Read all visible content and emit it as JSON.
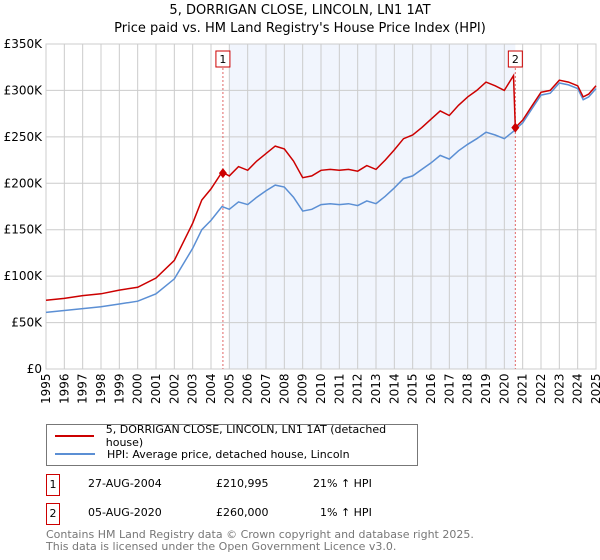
{
  "chart_data": {
    "type": "line",
    "title": "5, DORRIGAN CLOSE, LINCOLN, LN1 1AT",
    "subtitle": "Price paid vs. HM Land Registry's House Price Index (HPI)",
    "xlim": [
      1995,
      2025
    ],
    "ylim": [
      0,
      350000
    ],
    "y_ticks": [
      {
        "v": 0,
        "label": "£0"
      },
      {
        "v": 50000,
        "label": "£50K"
      },
      {
        "v": 100000,
        "label": "£100K"
      },
      {
        "v": 150000,
        "label": "£150K"
      },
      {
        "v": 200000,
        "label": "£200K"
      },
      {
        "v": 250000,
        "label": "£250K"
      },
      {
        "v": 300000,
        "label": "£300K"
      },
      {
        "v": 350000,
        "label": "£350K"
      }
    ],
    "x_ticks": [
      "1995",
      "1996",
      "1997",
      "1998",
      "1999",
      "2000",
      "2001",
      "2002",
      "2003",
      "2004",
      "2005",
      "2006",
      "2007",
      "2008",
      "2009",
      "2010",
      "2011",
      "2012",
      "2013",
      "2014",
      "2015",
      "2016",
      "2017",
      "2018",
      "2019",
      "2020",
      "2021",
      "2022",
      "2023",
      "2024",
      "2025"
    ],
    "grid": true,
    "shaded_range": [
      2005,
      2020.6
    ],
    "x": [
      1995,
      1996,
      1997,
      1998,
      1999,
      2000,
      2001,
      2002,
      2003,
      2003.5,
      2004,
      2004.6,
      2005,
      2005.5,
      2006,
      2006.5,
      2007,
      2007.5,
      2008,
      2008.5,
      2009,
      2009.5,
      2010,
      2010.5,
      2011,
      2011.5,
      2012,
      2012.5,
      2013,
      2013.5,
      2014,
      2014.5,
      2015,
      2015.5,
      2016,
      2016.5,
      2017,
      2017.5,
      2018,
      2018.5,
      2019,
      2019.5,
      2020,
      2020.5,
      2020.6,
      2021,
      2021.5,
      2022,
      2022.5,
      2023,
      2023.5,
      2024,
      2024.3,
      2024.6,
      2025
    ],
    "series": [
      {
        "name": "5, DORRIGAN CLOSE, LINCOLN, LN1 1AT (detached house)",
        "color": "#cc0000",
        "values": [
          74,
          76,
          79,
          81,
          85,
          88,
          98,
          117,
          157,
          182,
          194,
          212,
          208,
          218,
          214,
          224,
          232,
          240,
          237,
          224,
          206,
          208,
          214,
          215,
          214,
          215,
          213,
          219,
          215,
          225,
          236,
          248,
          252,
          260,
          269,
          278,
          273,
          284,
          293,
          300,
          309,
          305,
          300,
          316,
          260,
          268,
          283,
          298,
          300,
          311,
          309,
          305,
          293,
          296,
          305
        ]
      },
      {
        "name": "HPI: Average price, detached house, Lincoln",
        "color": "#5b8fd4",
        "values": [
          61,
          63,
          65,
          67,
          70,
          73,
          81,
          97,
          130,
          150,
          160,
          175,
          172,
          180,
          177,
          185,
          192,
          198,
          196,
          185,
          170,
          172,
          177,
          178,
          177,
          178,
          176,
          181,
          178,
          186,
          195,
          205,
          208,
          215,
          222,
          230,
          226,
          235,
          242,
          248,
          255,
          252,
          248,
          256,
          258,
          265,
          280,
          295,
          297,
          308,
          306,
          302,
          290,
          293,
          302
        ]
      }
    ],
    "value_unit": "thousands GBP",
    "annotations": [
      {
        "label": "1",
        "x": 2004.65,
        "y": 210995
      },
      {
        "label": "2",
        "x": 2020.6,
        "y": 260000
      }
    ]
  },
  "sales": [
    {
      "num": "1",
      "date": "27-AUG-2004",
      "price": "£210,995",
      "hpi": "21% ↑ HPI"
    },
    {
      "num": "2",
      "date": "05-AUG-2020",
      "price": "£260,000",
      "hpi": "1% ↑ HPI"
    }
  ],
  "footer": {
    "line1": "Contains HM Land Registry data © Crown copyright and database right 2025.",
    "line2": "This data is licensed under the Open Government Licence v3.0."
  }
}
